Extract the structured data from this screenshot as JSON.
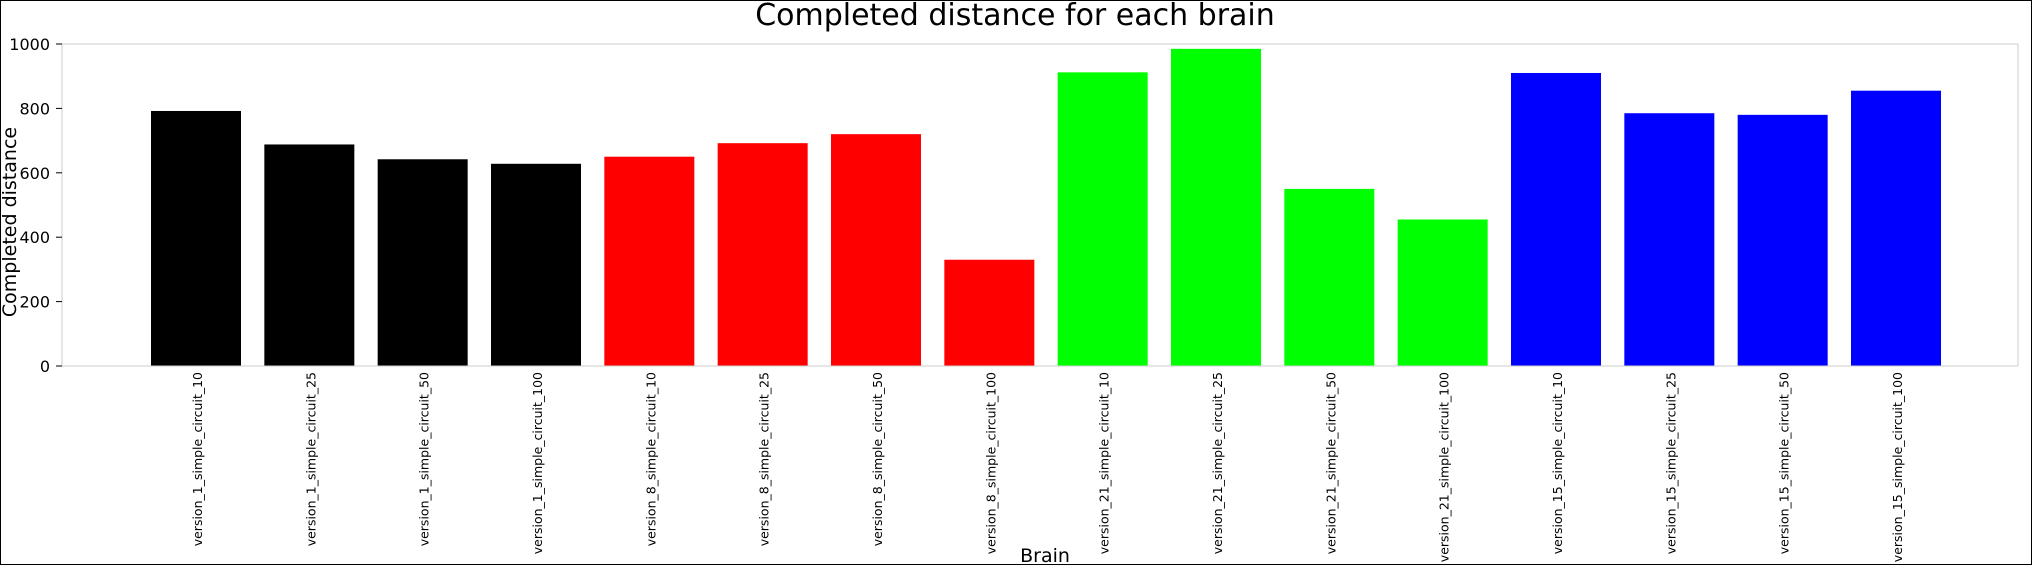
{
  "chart_data": {
    "type": "bar",
    "title": "Completed distance for each brain",
    "xlabel": "Brain",
    "ylabel": "Completed distance",
    "ylim": [
      0,
      1000
    ],
    "yticks": [
      0,
      200,
      400,
      600,
      800,
      1000
    ],
    "grid": false,
    "categories": [
      "version_1_simple_circuit_10",
      "version_1_simple_circuit_25",
      "version_1_simple_circuit_50",
      "version_1_simple_circuit_100",
      "version_8_simple_circuit_10",
      "version_8_simple_circuit_25",
      "version_8_simple_circuit_50",
      "version_8_simple_circuit_100",
      "version_21_simple_circuit_10",
      "version_21_simple_circuit_25",
      "version_21_simple_circuit_50",
      "version_21_simple_circuit_100",
      "version_15_simple_circuit_10",
      "version_15_simple_circuit_25",
      "version_15_simple_circuit_50",
      "version_15_simple_circuit_100"
    ],
    "values": [
      792,
      688,
      642,
      628,
      650,
      692,
      720,
      330,
      912,
      985,
      550,
      455,
      910,
      785,
      780,
      855
    ],
    "colors": [
      "#000000",
      "#000000",
      "#000000",
      "#000000",
      "#ff0000",
      "#ff0000",
      "#ff0000",
      "#ff0000",
      "#00ff00",
      "#00ff00",
      "#00ff00",
      "#00ff00",
      "#0000ff",
      "#0000ff",
      "#0000ff",
      "#0000ff"
    ]
  }
}
